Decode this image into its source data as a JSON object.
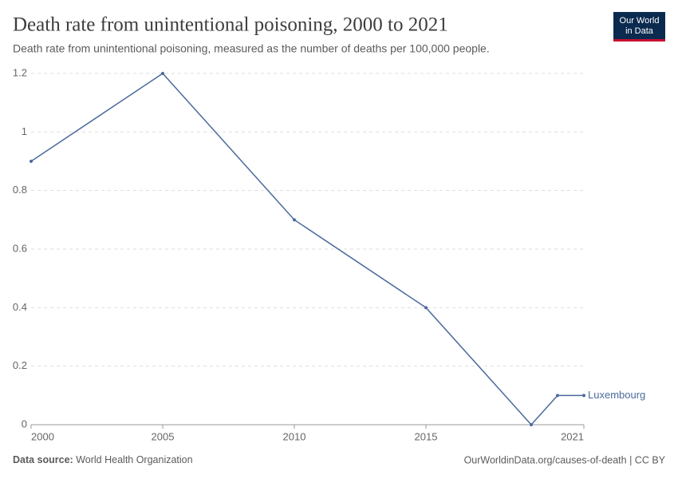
{
  "chart_data": {
    "type": "line",
    "title": "Death rate from unintentional poisoning, 2000 to 2021",
    "subtitle": "Death rate from unintentional poisoning, measured as the number of deaths per 100,000 people.",
    "x": [
      2000,
      2005,
      2010,
      2015,
      2019,
      2020,
      2021
    ],
    "series": [
      {
        "name": "Luxembourg",
        "color": "#4c6a9c",
        "values": [
          0.9,
          1.2,
          0.7,
          0.4,
          0,
          0.1,
          0.1
        ]
      }
    ],
    "xlim": [
      2000,
      2021
    ],
    "xticks": [
      2000,
      2005,
      2010,
      2015,
      2021
    ],
    "ylim": [
      0,
      1.2
    ],
    "yticks": [
      0,
      0.2,
      0.4,
      0.6,
      0.8,
      1,
      1.2
    ],
    "grid": true
  },
  "logo": [
    "Our World",
    "in Data"
  ],
  "footer": {
    "source_label": "Data source:",
    "source": "World Health Organization",
    "url": "OurWorldinData.org/causes-of-death | CC BY"
  }
}
